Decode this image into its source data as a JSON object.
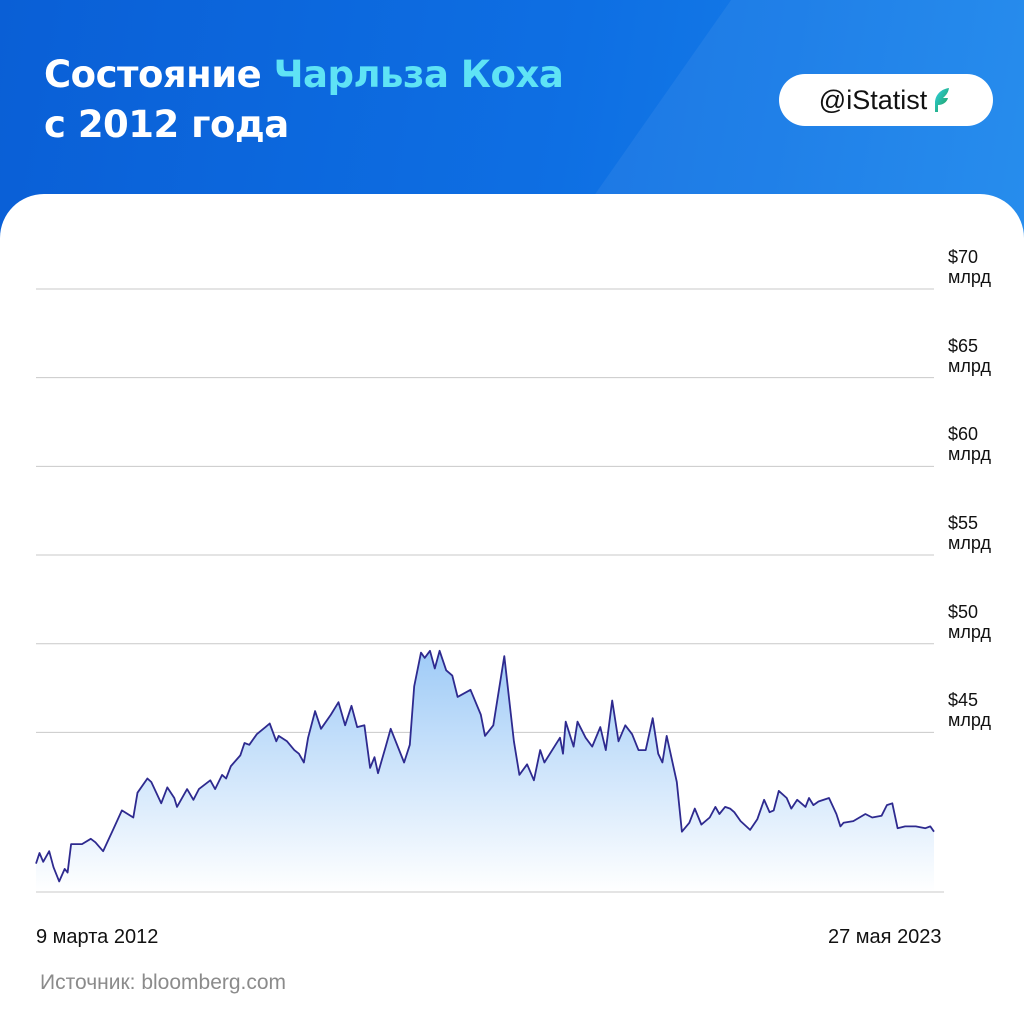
{
  "header": {
    "title_part1": "Состояние ",
    "title_accent": "Чарльза Коха",
    "title_line2": "с 2012 года",
    "accent_color": "#5fe3f5",
    "background_color": "#0e6fe3"
  },
  "badge": {
    "handle": "@iStatist",
    "logo_icon": "feather-logo-icon"
  },
  "source": "Источник: bloomberg.com",
  "chart_data": {
    "type": "area",
    "title": "Состояние Чарльза Коха с 2012 года",
    "ylabel": "",
    "xlabel": "",
    "y_unit": "млрд долларов",
    "ylim": [
      36,
      70
    ],
    "grid": true,
    "y_ticks": [
      {
        "value": 70,
        "label": [
          "$70",
          "млрд"
        ]
      },
      {
        "value": 65,
        "label": [
          "$65",
          "млрд"
        ]
      },
      {
        "value": 60,
        "label": [
          "$60",
          "млрд"
        ]
      },
      {
        "value": 55,
        "label": [
          "$55",
          "млрд"
        ]
      },
      {
        "value": 50,
        "label": [
          "$50",
          "млрд"
        ]
      },
      {
        "value": 45,
        "label": [
          "$45",
          "млрд"
        ]
      }
    ],
    "x_start_label": "9 марта 2012",
    "x_end_label": "27 мая 2023",
    "x_range": [
      "2012-03-09",
      "2023-05-27"
    ],
    "line_color": "#2e2a8f",
    "fill_top_color": "#9fcbf7",
    "fill_bottom_color": "#ffffff",
    "series": [
      {
        "x": [
          "2012-03-09",
          "2012-03-25",
          "2012-04-11",
          "2012-05-08",
          "2012-05-28",
          "2012-06-23",
          "2012-07-18",
          "2012-07-31",
          "2012-08-16",
          "2012-09-12",
          "2012-10-05",
          "2012-11-14",
          "2012-12-05",
          "2013-01-09",
          "2013-02-23",
          "2013-04-05",
          "2013-05-27",
          "2013-06-15",
          "2013-07-30",
          "2013-08-17",
          "2013-10-01",
          "2013-10-29",
          "2013-11-30",
          "2013-12-12",
          "2014-01-27",
          "2014-02-25",
          "2014-03-22",
          "2014-05-13",
          "2014-06-04",
          "2014-07-06",
          "2014-07-24",
          "2014-08-15",
          "2014-09-27",
          "2014-10-16",
          "2014-11-07",
          "2014-12-11",
          "2015-01-20",
          "2015-02-08",
          "2015-03-10",
          "2015-03-21",
          "2015-04-28",
          "2015-05-31",
          "2015-06-21",
          "2015-07-14",
          "2015-08-02",
          "2015-09-03",
          "2015-09-30",
          "2015-11-14",
          "2015-12-19",
          "2016-01-18",
          "2016-02-16",
          "2016-03-13",
          "2016-04-15",
          "2016-05-11",
          "2016-05-31",
          "2016-06-16",
          "2016-07-21",
          "2016-08-13",
          "2016-10-13",
          "2016-11-08",
          "2016-11-28",
          "2016-12-29",
          "2017-01-15",
          "2017-02-08",
          "2017-03-02",
          "2017-03-24",
          "2017-04-23",
          "2017-05-21",
          "2017-06-14",
          "2017-08-12",
          "2017-09-28",
          "2017-10-17",
          "2017-11-24",
          "2018-01-13",
          "2018-02-26",
          "2018-03-23",
          "2018-04-27",
          "2018-05-28",
          "2018-06-26",
          "2018-07-15",
          "2018-09-24",
          "2018-10-08",
          "2018-10-20",
          "2018-11-25",
          "2018-12-13",
          "2019-01-19",
          "2019-02-18",
          "2019-03-27",
          "2019-04-21",
          "2019-05-20",
          "2019-06-18",
          "2019-07-19",
          "2019-08-19",
          "2019-09-17",
          "2019-10-20",
          "2019-11-21",
          "2019-12-16",
          "2020-01-04",
          "2020-01-24",
          "2020-03-10",
          "2020-04-02",
          "2020-05-06",
          "2020-05-31",
          "2020-06-30",
          "2020-08-07",
          "2020-09-02",
          "2020-09-20",
          "2020-10-16",
          "2020-11-08",
          "2020-11-27",
          "2020-12-26",
          "2021-02-07",
          "2021-03-12",
          "2021-04-12",
          "2021-05-07",
          "2021-05-26",
          "2021-06-18",
          "2021-07-24",
          "2021-08-14",
          "2021-09-10",
          "2021-10-18",
          "2021-11-03",
          "2021-11-23",
          "2021-12-16",
          "2022-02-02",
          "2022-03-08",
          "2022-03-26",
          "2022-04-09",
          "2022-05-24",
          "2022-07-18",
          "2022-08-18",
          "2022-09-30",
          "2022-10-24",
          "2022-11-18",
          "2022-12-12",
          "2023-01-15",
          "2023-03-05",
          "2023-04-18",
          "2023-05-10",
          "2023-05-27"
        ],
        "y": [
          37.6,
          38.2,
          37.7,
          38.3,
          37.4,
          36.6,
          37.3,
          37.1,
          38.7,
          38.7,
          38.7,
          39.0,
          38.8,
          38.3,
          39.5,
          40.6,
          40.2,
          41.6,
          42.4,
          42.2,
          41.0,
          41.9,
          41.3,
          40.8,
          41.8,
          41.2,
          41.8,
          42.3,
          41.8,
          42.6,
          42.4,
          43.1,
          43.7,
          44.4,
          44.3,
          44.9,
          45.3,
          45.5,
          44.5,
          44.8,
          44.5,
          44.0,
          43.8,
          43.3,
          44.7,
          46.2,
          45.2,
          46.0,
          46.7,
          45.4,
          46.5,
          45.3,
          45.4,
          43.0,
          43.6,
          42.7,
          44.2,
          45.2,
          43.3,
          44.3,
          47.6,
          49.5,
          49.2,
          49.6,
          48.6,
          49.6,
          48.5,
          48.2,
          47.0,
          47.4,
          46.0,
          44.8,
          45.4,
          49.3,
          44.5,
          42.6,
          43.2,
          42.3,
          44.0,
          43.3,
          44.7,
          43.8,
          45.6,
          44.2,
          45.6,
          44.7,
          44.2,
          45.3,
          44.0,
          46.8,
          44.5,
          45.4,
          44.9,
          44.0,
          44.0,
          45.8,
          43.8,
          43.3,
          44.8,
          42.2,
          39.4,
          39.9,
          40.7,
          39.8,
          40.2,
          40.8,
          40.4,
          40.8,
          40.7,
          40.5,
          40.0,
          39.5,
          40.1,
          41.2,
          40.5,
          40.6,
          41.7,
          41.3,
          40.7,
          41.2,
          40.8,
          41.3,
          40.9,
          41.1,
          41.3,
          40.4,
          39.7,
          39.9,
          40.0,
          40.4,
          40.2,
          40.3,
          40.9,
          41.0,
          39.6,
          39.7,
          39.7,
          39.6,
          39.7,
          39.4
        ]
      }
    ]
  }
}
